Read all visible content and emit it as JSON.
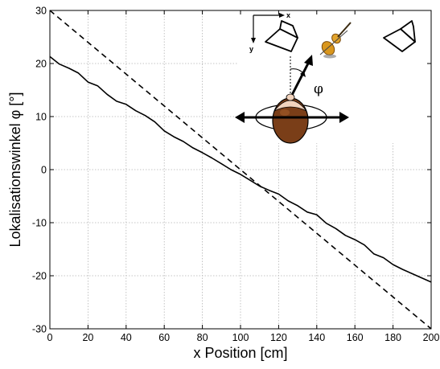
{
  "chart_data": {
    "type": "line",
    "xlabel": "x Position [cm]",
    "ylabel": "Lokalisationswinkel φ [°]",
    "xlim": [
      0,
      200
    ],
    "ylim": [
      -30,
      30
    ],
    "xticks": [
      0,
      20,
      40,
      60,
      80,
      100,
      120,
      140,
      160,
      180,
      200
    ],
    "yticks": [
      -30,
      -20,
      -10,
      0,
      10,
      20,
      30
    ],
    "grid": true,
    "series": [
      {
        "style": "solid",
        "color": "#000000",
        "x": [
          0,
          5,
          10,
          15,
          20,
          25,
          30,
          35,
          40,
          45,
          50,
          55,
          60,
          65,
          70,
          75,
          80,
          85,
          90,
          95,
          100,
          105,
          110,
          115,
          120,
          125,
          130,
          135,
          140,
          145,
          150,
          155,
          160,
          165,
          170,
          175,
          180,
          185,
          190,
          195,
          200
        ],
        "y": [
          21.3,
          19.9,
          19.1,
          18.2,
          16.5,
          15.8,
          14.2,
          12.9,
          12.3,
          11.1,
          10.2,
          9.0,
          7.3,
          6.2,
          5.3,
          4.1,
          3.2,
          2.2,
          1.1,
          0.0,
          -0.9,
          -2.0,
          -3.1,
          -3.9,
          -4.6,
          -5.9,
          -6.8,
          -8.0,
          -8.5,
          -10.1,
          -11.1,
          -12.4,
          -13.2,
          -14.2,
          -15.9,
          -16.6,
          -17.9,
          -18.8,
          -19.6,
          -20.4,
          -21.2
        ]
      },
      {
        "style": "dashed",
        "color": "#000000",
        "x": [
          0,
          200
        ],
        "y": [
          30,
          -30
        ]
      }
    ]
  },
  "inset": {
    "x_axis_label": "x",
    "y_axis_label": "y",
    "angle_symbol": "φ",
    "icons": [
      "loudspeaker-left-icon",
      "violin-icon",
      "loudspeaker-right-icon",
      "listener-head-icon"
    ]
  }
}
